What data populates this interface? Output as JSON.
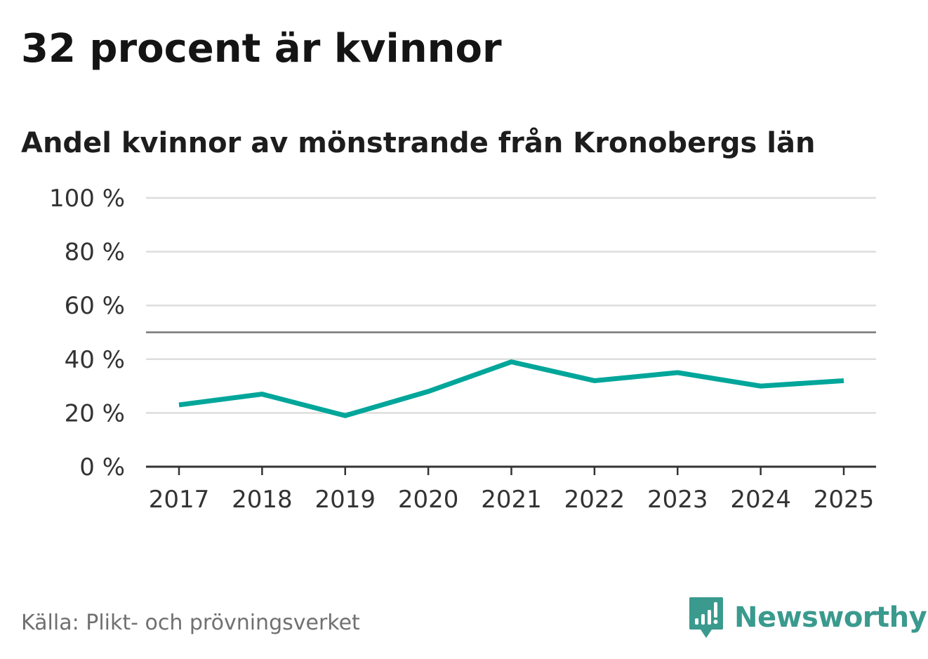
{
  "title": "32 procent är kvinnor",
  "subtitle": "Andel kvinnor av mönstrande från Kronobergs län",
  "source": "Källa: Plikt- och prövningsverket",
  "brand": {
    "name": "Newsworthy",
    "icon": "newsworthy-logo-icon",
    "color": "#3a9a8e"
  },
  "colors": {
    "line": "#00a69a",
    "grid": "#dddddd",
    "reference_line": "#777777",
    "axis": "#333333"
  },
  "chart_data": {
    "type": "line",
    "title": "32 procent är kvinnor",
    "subtitle": "Andel kvinnor av mönstrande från Kronobergs län",
    "xlabel": "",
    "ylabel": "",
    "categories": [
      "2017",
      "2018",
      "2019",
      "2020",
      "2021",
      "2022",
      "2023",
      "2024",
      "2025"
    ],
    "series": [
      {
        "name": "Andel kvinnor",
        "values": [
          23,
          27,
          19,
          28,
          39,
          32,
          35,
          30,
          32
        ]
      }
    ],
    "ylim": [
      0,
      100
    ],
    "yticks": [
      0,
      20,
      40,
      60,
      80,
      100
    ],
    "ytick_labels": [
      "0 %",
      "20 %",
      "40 %",
      "60 %",
      "80 %",
      "100 %"
    ],
    "reference_line": 50,
    "grid": true,
    "legend": "none"
  }
}
